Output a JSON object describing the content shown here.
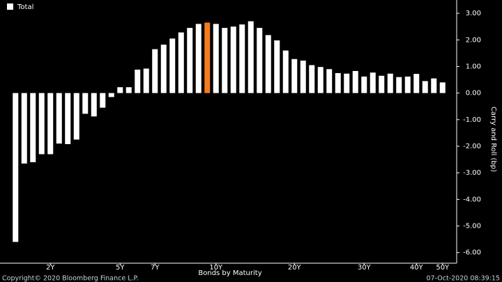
{
  "chart_data": {
    "type": "bar",
    "legend": "Total",
    "x_label": "Bonds by Maturity",
    "y_label": "Carry and Roll (bp)",
    "copyright": "Copyright© 2020 Bloomberg Finance L.P.",
    "timestamp": "07-Oct-2020 08:39:15",
    "categories": [
      null,
      null,
      null,
      null,
      "2Y",
      null,
      null,
      null,
      null,
      null,
      null,
      null,
      "5Y",
      null,
      null,
      null,
      "7Y",
      null,
      null,
      null,
      null,
      null,
      null,
      "10Y",
      null,
      null,
      null,
      null,
      null,
      null,
      null,
      null,
      "20Y",
      null,
      null,
      null,
      null,
      null,
      null,
      null,
      "30Y",
      null,
      null,
      null,
      null,
      null,
      "40Y",
      null,
      null,
      "50Y"
    ],
    "values": [
      -5.6,
      -2.65,
      -2.6,
      -2.3,
      -2.3,
      -1.9,
      -1.92,
      -1.75,
      -0.78,
      -0.88,
      -0.55,
      -0.15,
      0.22,
      0.22,
      0.88,
      0.92,
      1.65,
      1.82,
      2.05,
      2.28,
      2.45,
      2.6,
      2.65,
      2.6,
      2.45,
      2.5,
      2.58,
      2.7,
      2.45,
      2.18,
      1.98,
      1.6,
      1.28,
      1.22,
      1.05,
      0.98,
      0.9,
      0.75,
      0.73,
      0.83,
      0.62,
      0.77,
      0.65,
      0.73,
      0.6,
      0.62,
      0.72,
      0.45,
      0.55,
      0.4
    ],
    "color": "#ffffff",
    "highlight": {
      "index": 22,
      "color": "#f47c20"
    },
    "ylim": [
      -6.4,
      3.5
    ],
    "yticks": [
      {
        "value": 3,
        "label": "3.00"
      },
      {
        "value": 2,
        "label": "2.00"
      },
      {
        "value": 1,
        "label": "1.00"
      },
      {
        "value": 0,
        "label": "0.00"
      },
      {
        "value": -1,
        "label": "-1.00"
      },
      {
        "value": -2,
        "label": "-2.00"
      },
      {
        "value": -3,
        "label": "-3.00"
      },
      {
        "value": -4,
        "label": "-4.00"
      },
      {
        "value": -5,
        "label": "-5.00"
      },
      {
        "value": -6,
        "label": "-6.00"
      }
    ],
    "grid": false
  }
}
